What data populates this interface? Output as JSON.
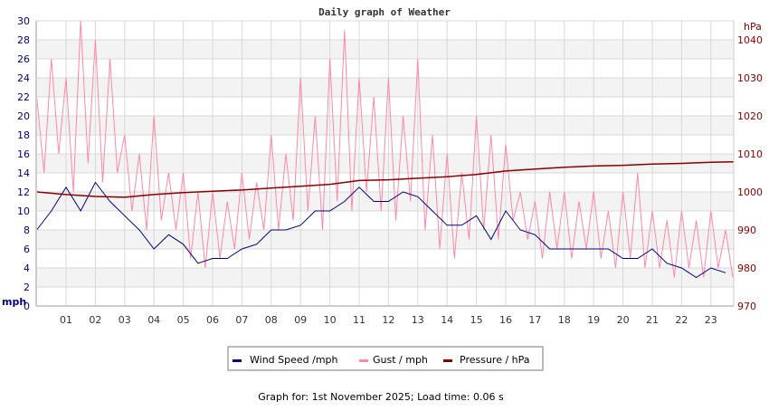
{
  "chart_data": {
    "type": "line",
    "title": "Daily graph of Weather",
    "footer": "Graph for: 1st November 2025; Load time: 0.06 s",
    "left_axis": {
      "label": "mph",
      "range": [
        0,
        30
      ],
      "ticks": [
        0,
        2,
        4,
        6,
        8,
        10,
        12,
        14,
        16,
        18,
        20,
        22,
        24,
        26,
        28,
        30
      ]
    },
    "right_axis": {
      "label": "hPa",
      "range": [
        970,
        1045
      ],
      "ticks": [
        970,
        980,
        990,
        1000,
        1010,
        1020,
        1030,
        1040
      ]
    },
    "x_axis": {
      "range": [
        0,
        24
      ],
      "tick_labels": [
        "01",
        "02",
        "03",
        "04",
        "05",
        "06",
        "07",
        "08",
        "09",
        "10",
        "11",
        "12",
        "13",
        "14",
        "15",
        "16",
        "17",
        "18",
        "19",
        "20",
        "21",
        "22",
        "23"
      ]
    },
    "grid": true,
    "legend_position": "bottom",
    "series": [
      {
        "name": "Wind Speed /mph",
        "color": "#00008b",
        "axis": "left",
        "step_hours": 0.5,
        "values": [
          8,
          10,
          12.5,
          10,
          13,
          11,
          9.5,
          8,
          6,
          7.5,
          6.5,
          4.5,
          5,
          5,
          6,
          6.5,
          8,
          8,
          8.5,
          10,
          10,
          11,
          12.5,
          11,
          11,
          12,
          11.5,
          10,
          8.5,
          8.5,
          9.5,
          7,
          10,
          8,
          7.5,
          6,
          6,
          6,
          6,
          6,
          5,
          5,
          6,
          4.5,
          4,
          3,
          4,
          3.5
        ]
      },
      {
        "name": "Gust / mph",
        "color": "#ff88aa",
        "axis": "left",
        "step_hours": 0.25,
        "values": [
          22,
          14,
          26,
          16,
          24,
          12,
          30,
          15,
          28,
          13,
          26,
          14,
          18,
          10,
          16,
          8,
          20,
          9,
          14,
          8,
          14,
          5,
          12,
          4,
          12,
          5,
          11,
          6,
          14,
          7,
          13,
          8,
          18,
          8,
          16,
          9,
          24,
          10,
          20,
          8,
          26,
          11,
          29,
          10,
          24,
          12,
          22,
          10,
          24,
          9,
          20,
          11,
          26,
          8,
          18,
          6,
          16,
          5,
          14,
          7,
          20,
          8,
          18,
          7,
          17,
          9,
          12,
          7,
          11,
          5,
          12,
          6,
          12,
          5,
          11,
          6,
          12,
          5,
          10,
          4,
          12,
          5,
          14,
          4,
          10,
          4,
          9,
          3,
          10,
          4,
          9,
          3,
          10,
          4,
          8,
          3
        ]
      },
      {
        "name": "Pressure / hPa",
        "color": "#8b0000",
        "axis": "right",
        "step_hours": 1,
        "values": [
          1000,
          999.3,
          998.8,
          998.6,
          999.3,
          999.8,
          1000.2,
          1000.5,
          1001,
          1001.5,
          1002,
          1003,
          1003.2,
          1003.6,
          1004,
          1004.6,
          1005.5,
          1006,
          1006.5,
          1006.8,
          1007,
          1007.3,
          1007.5,
          1007.8,
          1007.9
        ]
      }
    ]
  }
}
